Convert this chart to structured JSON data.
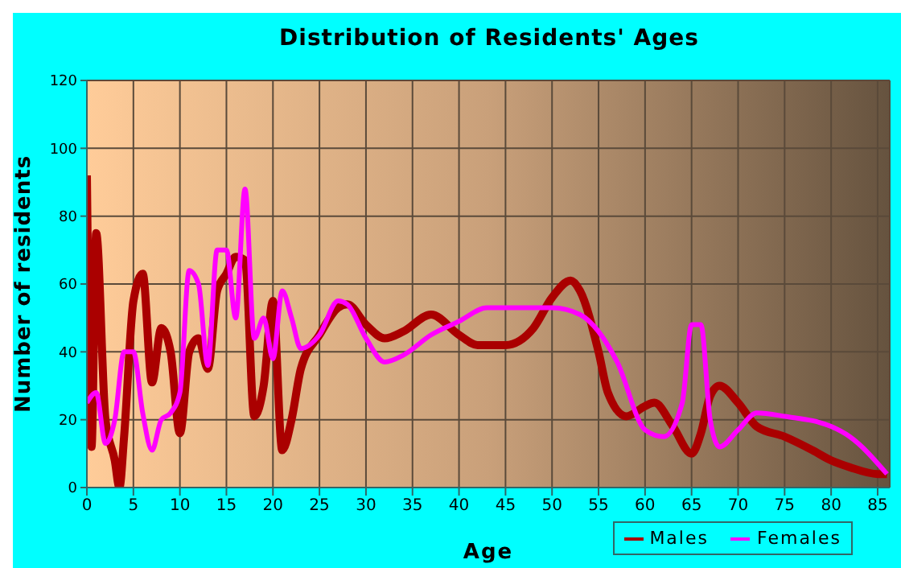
{
  "chart_data": {
    "type": "line",
    "title": "Distribution of Residents' Ages",
    "xlabel": "Age",
    "ylabel": "Number of residents",
    "xlim": [
      0,
      86.3
    ],
    "xticks": [
      0,
      5,
      10,
      15,
      20,
      25,
      30,
      35,
      40,
      45,
      50,
      55,
      60,
      65,
      70,
      75,
      80,
      85
    ],
    "ylim": [
      0,
      120
    ],
    "yticks": [
      0,
      20,
      40,
      60,
      80,
      100,
      120
    ],
    "grid": true,
    "legend": "bottom right",
    "marker": "none",
    "line_style": "solid",
    "series": [
      {
        "name": "Males",
        "color": "#aa0000",
        "x": [
          0,
          0.5,
          1,
          2,
          3,
          3.5,
          4,
          5,
          6,
          7,
          8,
          9,
          10,
          11,
          12,
          13,
          14,
          15,
          16,
          17,
          18,
          19,
          20,
          21,
          22,
          23,
          25,
          27,
          28,
          30,
          32,
          34,
          37,
          40,
          42,
          45,
          48,
          50,
          52,
          53,
          55,
          56,
          58,
          60,
          61,
          63,
          65,
          66,
          67,
          68,
          70,
          72,
          75,
          78,
          80,
          82,
          85,
          86
        ],
        "values": [
          92,
          12,
          75,
          20,
          8,
          0,
          15,
          55,
          63,
          31,
          47,
          40,
          16,
          40,
          44,
          35,
          58,
          63,
          68,
          67,
          21,
          30,
          55,
          11,
          20,
          35,
          45,
          53,
          54,
          48,
          44,
          46,
          51,
          45,
          42,
          42,
          47,
          56,
          61,
          58,
          40,
          28,
          21,
          24,
          25,
          18,
          10,
          16,
          27,
          30,
          25,
          18,
          15,
          11,
          8,
          6,
          4,
          4
        ]
      },
      {
        "name": "Females",
        "color": "#ff00ff",
        "x": [
          0,
          1,
          2,
          3,
          4,
          5,
          6,
          7,
          8,
          9,
          10,
          11,
          12,
          13,
          14,
          15,
          16,
          17,
          18,
          19,
          20,
          21,
          22,
          23,
          25,
          27,
          28,
          30,
          32,
          34,
          37,
          40,
          43,
          46,
          50,
          53,
          55,
          57,
          60,
          62,
          64,
          65,
          66,
          67,
          68,
          70,
          72,
          75,
          80,
          82,
          86
        ],
        "values": [
          25,
          28,
          13,
          20,
          40,
          40,
          22,
          11,
          20,
          22,
          28,
          64,
          60,
          36,
          70,
          70,
          50,
          88,
          44,
          50,
          38,
          58,
          50,
          41,
          45,
          55,
          54,
          44,
          37,
          39,
          45,
          49,
          53,
          53,
          53,
          51,
          46,
          37,
          17,
          15,
          25,
          48,
          48,
          20,
          12,
          17,
          22,
          21,
          18,
          15,
          4
        ]
      }
    ]
  }
}
